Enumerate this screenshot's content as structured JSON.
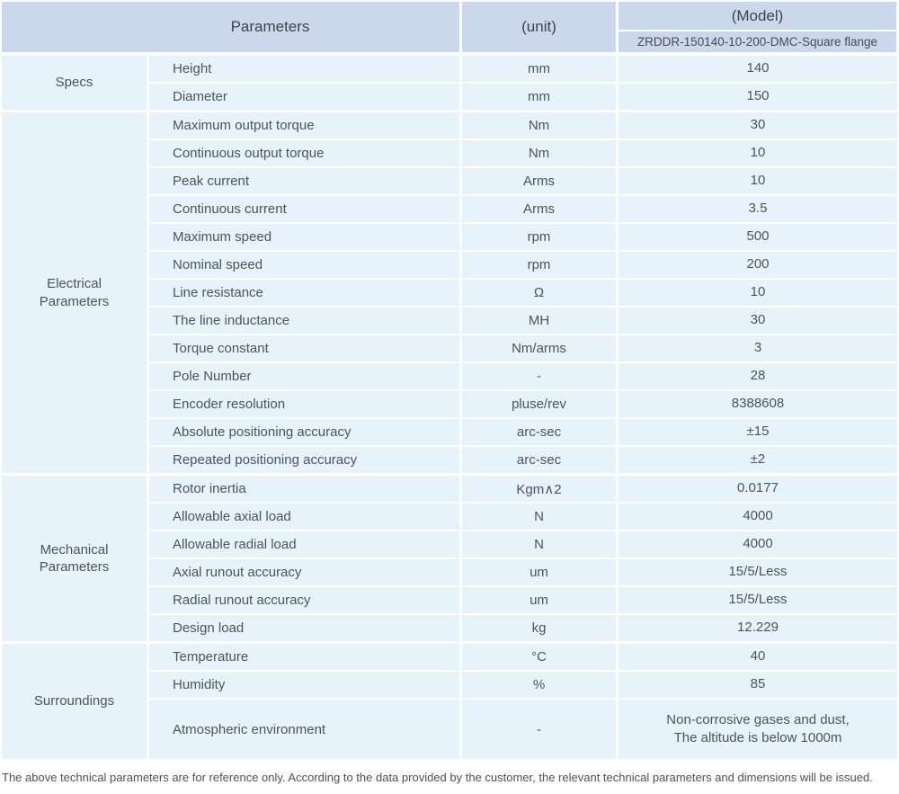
{
  "header": {
    "parameters": "Parameters",
    "unit": "(unit)",
    "model": "(Model)",
    "model_value": "ZRDDR-150140-10-200-DMC-Square flange"
  },
  "sections": [
    {
      "label": "Specs",
      "rows": [
        {
          "name": "Height",
          "unit": "mm",
          "value": "140"
        },
        {
          "name": "Diameter",
          "unit": "mm",
          "value": "150"
        }
      ]
    },
    {
      "label": "Electrical Parameters",
      "rows": [
        {
          "name": "Maximum output torque",
          "unit": "Nm",
          "value": "30"
        },
        {
          "name": "Continuous output torque",
          "unit": "Nm",
          "value": "10"
        },
        {
          "name": "Peak current",
          "unit": "Arms",
          "value": "10"
        },
        {
          "name": "Continuous current",
          "unit": "Arms",
          "value": "3.5"
        },
        {
          "name": "Maximum speed",
          "unit": "rpm",
          "value": "500"
        },
        {
          "name": "Nominal speed",
          "unit": "rpm",
          "value": "200"
        },
        {
          "name": "Line resistance",
          "unit": "Ω",
          "value": "10"
        },
        {
          "name": "The line inductance",
          "unit": "MH",
          "value": "30"
        },
        {
          "name": "Torque constant",
          "unit": "Nm/arms",
          "value": "3"
        },
        {
          "name": "Pole Number",
          "unit": "-",
          "value": "28"
        },
        {
          "name": "Encoder resolution",
          "unit": "pluse/rev",
          "value": "8388608"
        },
        {
          "name": "Absolute positioning accuracy",
          "unit": "arc-sec",
          "value": "±15"
        },
        {
          "name": "Repeated positioning accuracy",
          "unit": "arc-sec",
          "value": "±2"
        }
      ]
    },
    {
      "label": "Mechanical Parameters",
      "rows": [
        {
          "name": "Rotor inertia",
          "unit": "Kgm∧2",
          "value": "0.0177"
        },
        {
          "name": "Allowable axial load",
          "unit": "N",
          "value": "4000"
        },
        {
          "name": "Allowable radial load",
          "unit": "N",
          "value": "4000"
        },
        {
          "name": "Axial runout accuracy",
          "unit": "um",
          "value": "15/5/Less"
        },
        {
          "name": "Radial runout accuracy",
          "unit": "um",
          "value": "15/5/Less"
        },
        {
          "name": "Design load",
          "unit": "kg",
          "value": "12.229"
        }
      ]
    },
    {
      "label": "Surroundings",
      "rows": [
        {
          "name": "Temperature",
          "unit": "°C",
          "value": "40"
        },
        {
          "name": "Humidity",
          "unit": "%",
          "value": "85"
        },
        {
          "name": "Atmospheric environment",
          "unit": "-",
          "value": "Non-corrosive gases and dust,\nThe altitude is below 1000m",
          "tall": true
        }
      ]
    }
  ],
  "footer": "The above technical parameters are for reference only. According to the data provided by the customer, the relevant technical parameters and dimensions will be issued.",
  "colors": {
    "header_bg": "#cbd7ea",
    "row_bg": "#e7f3fb"
  }
}
